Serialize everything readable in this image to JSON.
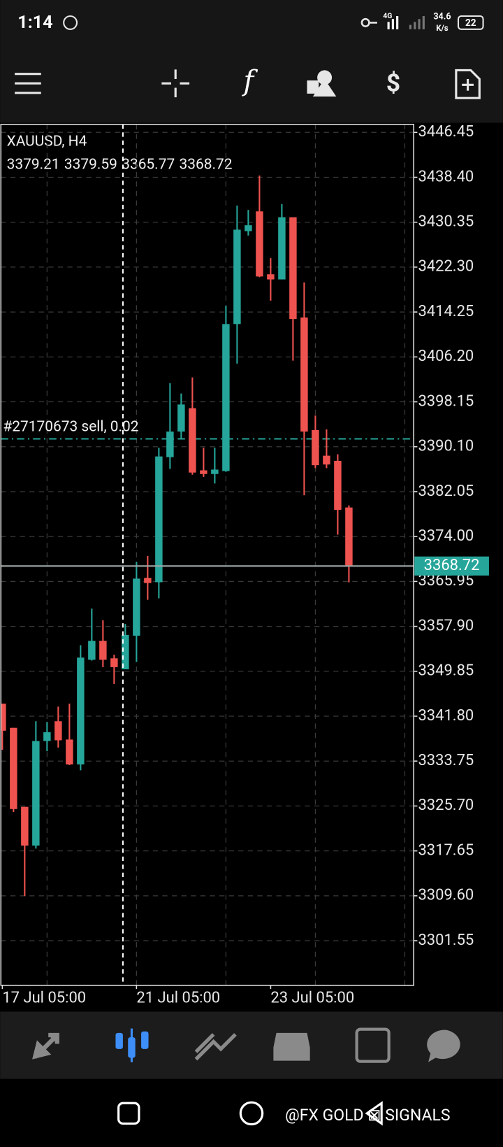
{
  "status_bar": {
    "time": "1:14",
    "network": "4G",
    "speed": "34.6",
    "speed_unit": "K/s",
    "battery": "22"
  },
  "chart_data": {
    "type": "candlestick",
    "title": "XAUUSD, H4",
    "categories": [
      "17 Jul 05:00",
      null,
      null,
      null,
      null,
      null,
      null,
      null,
      null,
      null,
      null,
      null,
      "21 Jul 05:00",
      null,
      null,
      null,
      null,
      null,
      null,
      null,
      null,
      null,
      null,
      null,
      "23 Jul 05:00",
      null,
      null,
      null,
      null,
      null,
      null,
      null
    ],
    "open": [
      3344.04,
      3339.71,
      3325.55,
      3318.6,
      3337.35,
      3340.89,
      3337.61,
      3333.15,
      3351.91,
      3355.31,
      3352.17,
      3350.2,
      3356.23,
      3366.59,
      3365.81,
      3388.23,
      3392.82,
      3397.01,
      3385.87,
      3385.21,
      3385.74,
      3412.09,
      3428.75,
      3432.29,
      3421.01,
      3420.09,
      3431.24,
      3413.27,
      3393.08,
      3388.49,
      3387.57,
      3379.21
    ],
    "high": [
      3344.04,
      3339.71,
      3325.55,
      3340.89,
      3340.76,
      3343.51,
      3344.04,
      3354.53,
      3361.08,
      3358.99,
      3352.82,
      3358.33,
      3369.48,
      3370.53,
      3389.93,
      3401.47,
      3399.64,
      3402.52,
      3389.93,
      3389.93,
      3415.37,
      3433.34,
      3432.55,
      3438.71,
      3423.9,
      3433.6,
      3431.24,
      3419.57,
      3395.7,
      3393.21,
      3388.75,
      3379.59
    ],
    "low": [
      3335.78,
      3324.63,
      3309.55,
      3318.07,
      3335.51,
      3336.17,
      3333.02,
      3332.1,
      3351.77,
      3350.59,
      3347.58,
      3350.2,
      3351.51,
      3362.66,
      3362.92,
      3386.13,
      3391.51,
      3385.08,
      3384.69,
      3383.51,
      3385.61,
      3405.01,
      3427.96,
      3420.49,
      3416.29,
      3420.09,
      3405.54,
      3381.41,
      3386.26,
      3386.26,
      3374.33,
      3365.77
    ],
    "close": [
      3339.19,
      3325.15,
      3318.6,
      3337.35,
      3338.92,
      3337.48,
      3333.15,
      3352.3,
      3355.31,
      3351.91,
      3350.59,
      3356.36,
      3366.46,
      3365.67,
      3388.36,
      3392.82,
      3397.67,
      3385.47,
      3385.21,
      3386.0,
      3412.09,
      3429.01,
      3429.8,
      3420.62,
      3420.09,
      3431.24,
      3413.01,
      3392.82,
      3386.79,
      3386.92,
      3378.79,
      3368.72
    ],
    "up_color": "#26a69a",
    "down_color": "#ef5350",
    "ylim": [
      3293.55,
      3447.89
    ],
    "yticks": [
      3446.45,
      {
        "value": 3438.4,
        "label": "3438.40"
      },
      3430.35,
      {
        "value": 3422.3,
        "label": "3422.30"
      },
      3414.25,
      {
        "value": 3406.2,
        "label": "3406.20"
      },
      3398.15,
      {
        "value": 3390.1,
        "label": "3390.10"
      },
      3382.05,
      {
        "value": 3374,
        "label": "3374.00"
      },
      3365.95,
      {
        "value": 3357.9,
        "label": "3357.90"
      },
      3349.85,
      {
        "value": 3341.8,
        "label": "3341.80"
      },
      3333.75,
      {
        "value": 3325.7,
        "label": "3325.70"
      },
      3317.65,
      {
        "value": 3309.6,
        "label": "3309.60"
      },
      3301.55
    ],
    "grid": true,
    "annotations": [
      {
        "text": "#27170673 sell, 0.02",
        "y": 3391.51
      }
    ]
  },
  "watermark": "@FX GOLD ⊠ SIGNALS"
}
